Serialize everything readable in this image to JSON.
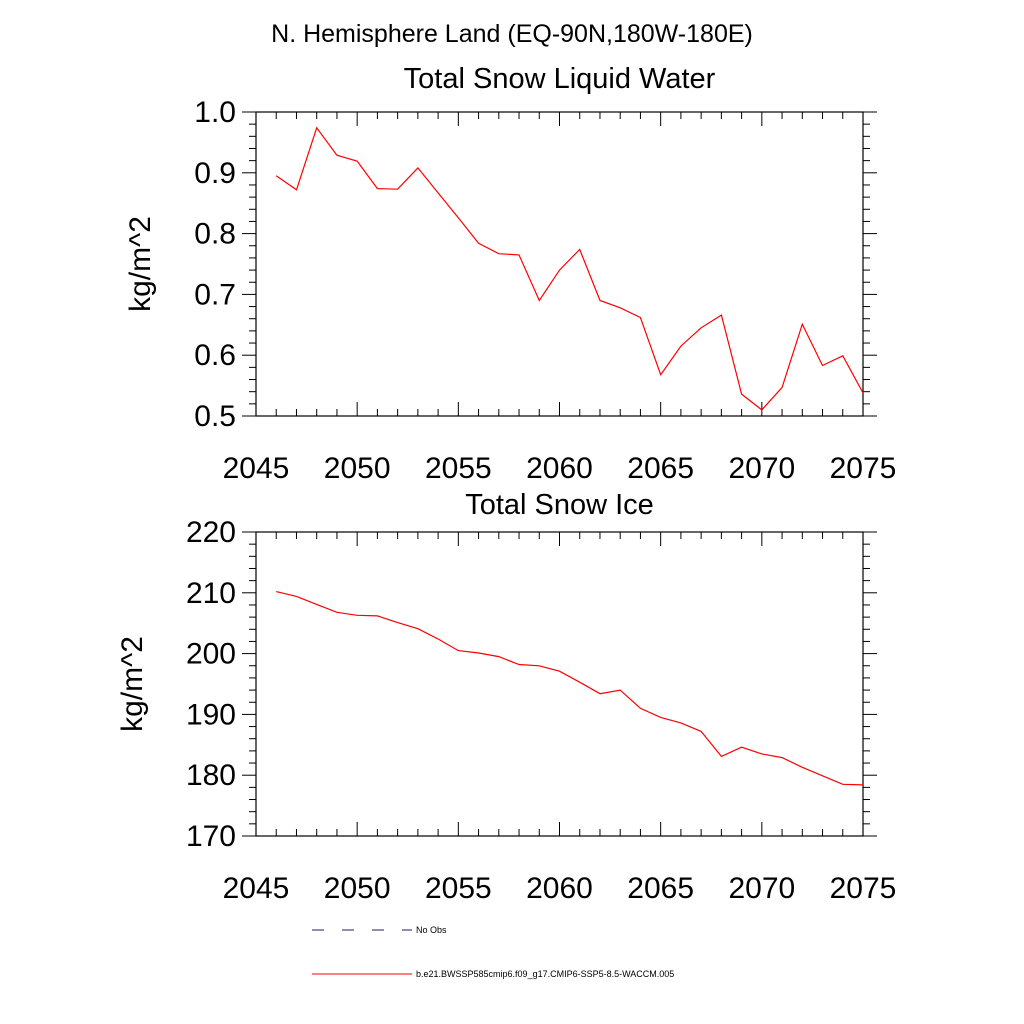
{
  "page": {
    "suptitle": "N. Hemisphere Land (EQ-90N,180W-180E)"
  },
  "colors": {
    "model": "#ff0000",
    "obs": "#1b1b6e",
    "axis": "#000000"
  },
  "legend": {
    "obs_label": "No Obs",
    "model_label": "b.e21.BWSSP585cmip6.f09_g17.CMIP6-SSP5-8.5-WACCM.005"
  },
  "chart_data": [
    {
      "type": "line",
      "title": "Total Snow Liquid Water",
      "xlabel": "",
      "ylabel": "kg/m^2",
      "xlim": [
        2045,
        2075
      ],
      "ylim": [
        0.5,
        1.0
      ],
      "xticks": [
        2045,
        2050,
        2055,
        2060,
        2065,
        2070,
        2075
      ],
      "yticks": [
        0.5,
        0.6,
        0.7,
        0.8,
        0.9,
        1.0
      ],
      "ytick_labels": [
        "0.5",
        "0.6",
        "0.7",
        "0.8",
        "0.9",
        "1.0"
      ],
      "x": [
        2046,
        2047,
        2048,
        2049,
        2050,
        2051,
        2052,
        2053,
        2054,
        2055,
        2056,
        2057,
        2058,
        2059,
        2060,
        2061,
        2062,
        2063,
        2064,
        2065,
        2066,
        2067,
        2068,
        2069,
        2070,
        2071,
        2072,
        2073,
        2074,
        2075
      ],
      "series": [
        {
          "name": "b.e21.BWSSP585cmip6.f09_g17.CMIP6-SSP5-8.5-WACCM.005",
          "values": [
            0.895,
            0.872,
            0.974,
            0.929,
            0.919,
            0.874,
            0.873,
            0.908,
            0.867,
            0.826,
            0.784,
            0.767,
            0.765,
            0.69,
            0.74,
            0.774,
            0.69,
            0.678,
            0.662,
            0.568,
            0.615,
            0.645,
            0.666,
            0.536,
            0.51,
            0.547,
            0.651,
            0.583,
            0.599,
            0.538
          ]
        }
      ]
    },
    {
      "type": "line",
      "title": "Total Snow Ice",
      "xlabel": "",
      "ylabel": "kg/m^2",
      "xlim": [
        2045,
        2075
      ],
      "ylim": [
        170,
        220
      ],
      "xticks": [
        2045,
        2050,
        2055,
        2060,
        2065,
        2070,
        2075
      ],
      "yticks": [
        170,
        180,
        190,
        200,
        210,
        220
      ],
      "ytick_labels": [
        "170",
        "180",
        "190",
        "200",
        "210",
        "220"
      ],
      "x": [
        2046,
        2047,
        2048,
        2049,
        2050,
        2051,
        2052,
        2053,
        2054,
        2055,
        2056,
        2057,
        2058,
        2059,
        2060,
        2061,
        2062,
        2063,
        2064,
        2065,
        2066,
        2067,
        2068,
        2069,
        2070,
        2071,
        2072,
        2073,
        2074,
        2075
      ],
      "series": [
        {
          "name": "b.e21.BWSSP585cmip6.f09_g17.CMIP6-SSP5-8.5-WACCM.005",
          "values": [
            210.2,
            209.4,
            208.1,
            206.8,
            206.3,
            206.2,
            205.1,
            204.1,
            202.4,
            200.5,
            200.1,
            199.5,
            198.2,
            198.0,
            197.1,
            195.3,
            193.4,
            194.0,
            191.0,
            189.5,
            188.6,
            187.2,
            183.1,
            184.6,
            183.5,
            182.9,
            181.3,
            179.9,
            178.5,
            178.4
          ]
        }
      ]
    }
  ]
}
